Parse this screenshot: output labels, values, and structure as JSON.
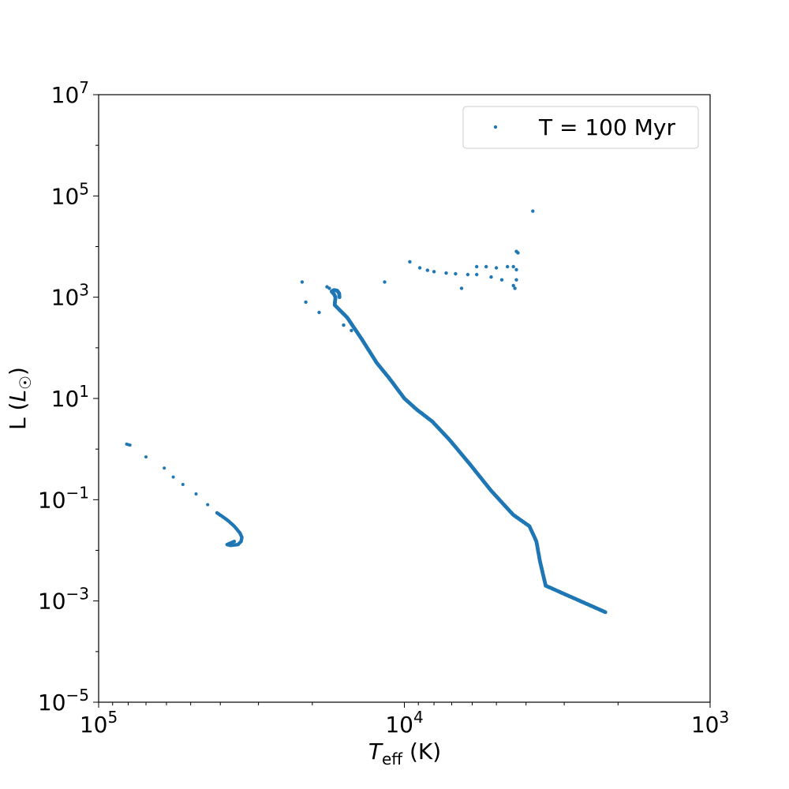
{
  "chart_data": {
    "type": "scatter",
    "xlabel": "T_eff (K)",
    "ylabel": "L (L_☉)",
    "x_scale": "log",
    "y_scale": "log",
    "x_reversed": true,
    "xlim": [
      100000,
      1000
    ],
    "ylim": [
      1e-05,
      10000000
    ],
    "x_ticks": [
      100000,
      10000,
      1000
    ],
    "x_tick_labels": [
      [
        "10",
        "5"
      ],
      [
        "10",
        "4"
      ],
      [
        "10",
        "3"
      ]
    ],
    "y_ticks": [
      1e-05,
      0.001,
      0.1,
      10,
      1000,
      100000,
      10000000
    ],
    "y_tick_labels": [
      [
        "10",
        "−5"
      ],
      [
        "10",
        "−3"
      ],
      [
        "10",
        "−1"
      ],
      [
        "10",
        "1"
      ],
      [
        "10",
        "3"
      ],
      [
        "10",
        "5"
      ],
      [
        "10",
        "7"
      ]
    ],
    "legend": {
      "position": "top-right"
    },
    "grid": false,
    "series": [
      {
        "name": "T = 100 Myr",
        "color": "#1f77b4",
        "branches": {
          "main_sequence_curve": [
            [
              16300,
              1000
            ],
            [
              16350,
              1200
            ],
            [
              16600,
              1350
            ],
            [
              17000,
              1380
            ],
            [
              17300,
              1300
            ],
            [
              17000,
              1150
            ],
            [
              16800,
              1000
            ],
            [
              16900,
              700
            ],
            [
              15400,
              400
            ],
            [
              13800,
              150
            ],
            [
              12300,
              50
            ],
            [
              11200,
              25
            ],
            [
              10000,
              10
            ],
            [
              9100,
              6
            ],
            [
              8100,
              3.5
            ],
            [
              7100,
              1.5
            ],
            [
              6100,
              0.5
            ],
            [
              5200,
              0.15
            ],
            [
              4400,
              0.05
            ],
            [
              3900,
              0.03
            ],
            [
              3700,
              0.015
            ],
            [
              3600,
              0.006
            ],
            [
              3450,
              0.002
            ],
            [
              2200,
              0.0006
            ]
          ],
          "main_sequence_outliers": [
            [
              21600,
              2000
            ],
            [
              21000,
              800
            ],
            [
              19000,
              500
            ],
            [
              17900,
              1600
            ],
            [
              17600,
              1500
            ],
            [
              15800,
              280
            ],
            [
              14900,
              220
            ]
          ],
          "giants": [
            [
              3800,
              50000
            ],
            [
              4300,
              8000
            ],
            [
              4250,
              7500
            ],
            [
              9600,
              5000
            ],
            [
              8900,
              3800
            ],
            [
              8400,
              3400
            ],
            [
              8000,
              3200
            ],
            [
              7300,
              3000
            ],
            [
              6800,
              2900
            ],
            [
              6200,
              2800
            ],
            [
              5800,
              4000
            ],
            [
              5400,
              4000
            ],
            [
              5000,
              3800
            ],
            [
              4600,
              4000
            ],
            [
              4400,
              4000
            ],
            [
              4300,
              3500
            ],
            [
              4300,
              2200
            ],
            [
              4400,
              1700
            ],
            [
              4350,
              1500
            ],
            [
              5800,
              2800
            ],
            [
              5200,
              2500
            ],
            [
              4800,
              2200
            ],
            [
              6500,
              1500
            ],
            [
              11600,
              2000
            ]
          ],
          "white_dwarfs": [
            [
              81000,
              1.25
            ],
            [
              79000,
              1.2
            ],
            [
              70000,
              0.7
            ],
            [
              61000,
              0.42
            ],
            [
              57000,
              0.28
            ],
            [
              53000,
              0.2
            ],
            [
              48000,
              0.13
            ],
            [
              44000,
              0.08
            ],
            [
              41000,
              0.055
            ],
            [
              38000,
              0.04
            ],
            [
              36000,
              0.03
            ],
            [
              34500,
              0.022
            ],
            [
              34000,
              0.018
            ],
            [
              34200,
              0.015
            ],
            [
              35000,
              0.013
            ],
            [
              37000,
              0.0125
            ],
            [
              38000,
              0.013
            ],
            [
              36000,
              0.015
            ]
          ]
        }
      }
    ]
  }
}
